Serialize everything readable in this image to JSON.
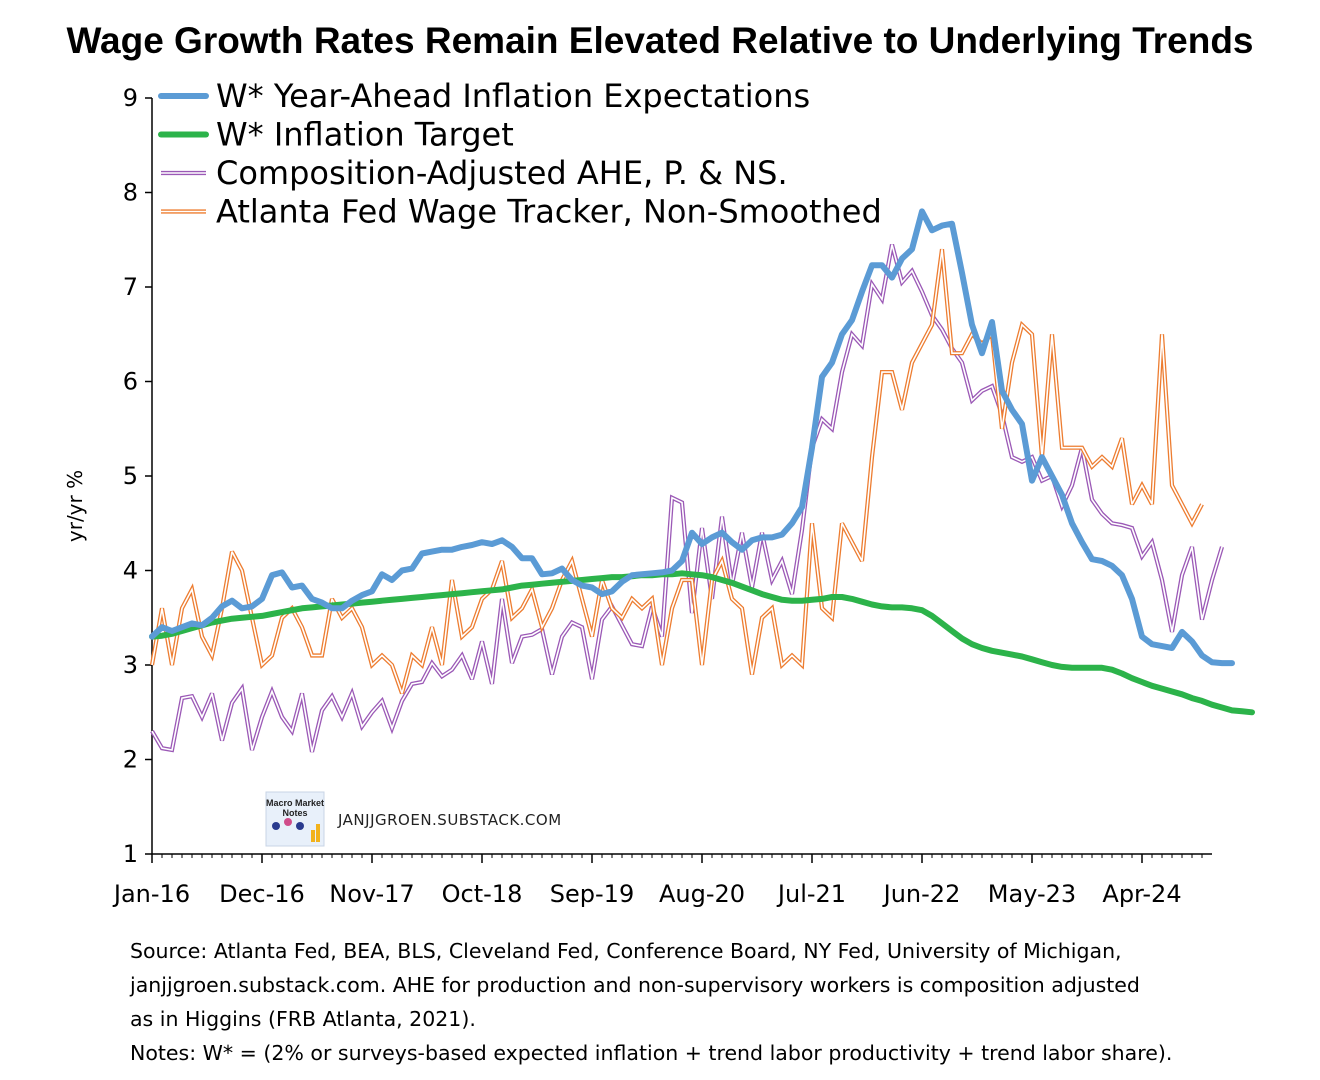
{
  "chart_data": {
    "type": "line",
    "title": "Wage Growth Rates Remain Elevated Relative to Underlying Trends",
    "ylabel": "yr/yr %",
    "xlabel": "",
    "ylim": [
      1,
      9
    ],
    "yticks": [
      1,
      2,
      3,
      4,
      5,
      6,
      7,
      8,
      9
    ],
    "x_tick_labels": [
      "Jan-16",
      "Dec-16",
      "Nov-17",
      "Oct-18",
      "Sep-19",
      "Aug-20",
      "Jul-21",
      "Jun-22",
      "May-23",
      "Apr-24"
    ],
    "x_tick_months": [
      0,
      11,
      22,
      33,
      44,
      55,
      66,
      77,
      88,
      99
    ],
    "x_months_total": 106,
    "grid": false,
    "legend_position": "top-left",
    "series": [
      {
        "name": "W* Year-Ahead Inflation Expectations",
        "color": "#5B9BD5",
        "style": "thick",
        "values": [
          3.3,
          3.4,
          3.36,
          3.4,
          3.44,
          3.42,
          3.5,
          3.62,
          3.68,
          3.6,
          3.62,
          3.7,
          3.95,
          3.98,
          3.82,
          3.84,
          3.7,
          3.66,
          3.6,
          3.6,
          3.68,
          3.74,
          3.78,
          3.96,
          3.9,
          4.0,
          4.02,
          4.18,
          4.2,
          4.22,
          4.22,
          4.25,
          4.27,
          4.3,
          4.28,
          4.32,
          4.25,
          4.13,
          4.13,
          3.96,
          3.97,
          4.02,
          3.9,
          3.84,
          3.82,
          3.75,
          3.78,
          3.88,
          3.95,
          3.96,
          3.97,
          3.98,
          4.0,
          4.1,
          4.4,
          4.28,
          4.35,
          4.4,
          4.3,
          4.22,
          4.32,
          4.35,
          4.35,
          4.38,
          4.5,
          4.67,
          5.3,
          6.05,
          6.2,
          6.5,
          6.65,
          6.95,
          7.23,
          7.23,
          7.1,
          7.3,
          7.4,
          7.8,
          7.6,
          7.65,
          7.67,
          7.15,
          6.6,
          6.3,
          6.63,
          5.9,
          5.7,
          5.55,
          4.95,
          5.2,
          5.0,
          4.8,
          4.5,
          4.3,
          4.12,
          4.1,
          4.05,
          3.95,
          3.7,
          3.3,
          3.22,
          3.2,
          3.18,
          3.35,
          3.25,
          3.1,
          3.03,
          3.02,
          3.02
        ]
      },
      {
        "name": "W* Inflation Target",
        "color": "#2CB34A",
        "style": "thick",
        "values": [
          3.3,
          3.31,
          3.33,
          3.36,
          3.39,
          3.42,
          3.45,
          3.47,
          3.49,
          3.5,
          3.51,
          3.52,
          3.54,
          3.56,
          3.58,
          3.6,
          3.61,
          3.62,
          3.63,
          3.64,
          3.65,
          3.66,
          3.67,
          3.68,
          3.69,
          3.7,
          3.71,
          3.72,
          3.73,
          3.74,
          3.75,
          3.76,
          3.77,
          3.78,
          3.79,
          3.8,
          3.82,
          3.84,
          3.85,
          3.86,
          3.87,
          3.88,
          3.89,
          3.9,
          3.91,
          3.92,
          3.93,
          3.93,
          3.94,
          3.95,
          3.95,
          3.96,
          3.96,
          3.97,
          3.96,
          3.95,
          3.93,
          3.9,
          3.87,
          3.83,
          3.79,
          3.75,
          3.72,
          3.69,
          3.68,
          3.68,
          3.69,
          3.7,
          3.72,
          3.72,
          3.7,
          3.67,
          3.64,
          3.62,
          3.61,
          3.61,
          3.6,
          3.58,
          3.52,
          3.44,
          3.36,
          3.28,
          3.22,
          3.18,
          3.15,
          3.13,
          3.11,
          3.09,
          3.06,
          3.03,
          3.0,
          2.98,
          2.97,
          2.97,
          2.97,
          2.97,
          2.95,
          2.91,
          2.86,
          2.82,
          2.78,
          2.75,
          2.72,
          2.69,
          2.65,
          2.62,
          2.58,
          2.55,
          2.52,
          2.51,
          2.5
        ]
      },
      {
        "name": "Composition-Adjusted AHE, P. & NS.",
        "color": "#9B59B6",
        "style": "double",
        "values": [
          2.3,
          2.12,
          2.1,
          2.65,
          2.67,
          2.45,
          2.7,
          2.2,
          2.6,
          2.75,
          2.1,
          2.45,
          2.72,
          2.45,
          2.3,
          2.7,
          2.08,
          2.52,
          2.67,
          2.45,
          2.7,
          2.35,
          2.5,
          2.62,
          2.33,
          2.62,
          2.8,
          2.82,
          3.02,
          2.88,
          2.95,
          3.1,
          2.85,
          3.25,
          2.8,
          3.7,
          3.02,
          3.3,
          3.32,
          3.38,
          2.9,
          3.3,
          3.45,
          3.4,
          2.85,
          3.48,
          3.62,
          3.42,
          3.22,
          3.2,
          3.62,
          3.3,
          4.77,
          4.72,
          3.55,
          4.45,
          3.7,
          4.57,
          3.85,
          4.4,
          3.82,
          4.4,
          3.9,
          4.1,
          3.75,
          4.43,
          5.3,
          5.6,
          5.5,
          6.1,
          6.5,
          6.38,
          7.03,
          6.87,
          7.45,
          7.05,
          7.17,
          6.95,
          6.7,
          6.55,
          6.35,
          6.2,
          5.8,
          5.9,
          5.95,
          5.65,
          5.2,
          5.15,
          5.2,
          4.95,
          5.0,
          4.68,
          4.9,
          5.3,
          4.75,
          4.6,
          4.5,
          4.48,
          4.45,
          4.15,
          4.3,
          3.9,
          3.35,
          3.95,
          4.25,
          3.48,
          3.9,
          4.25
        ]
      },
      {
        "name": "Atlanta Fed Wage Tracker, Non-Smoothed",
        "color": "#ED7D31",
        "style": "double",
        "values": [
          3.0,
          3.6,
          3.0,
          3.6,
          3.8,
          3.3,
          3.1,
          3.6,
          4.2,
          4.0,
          3.5,
          3.0,
          3.1,
          3.5,
          3.6,
          3.4,
          3.1,
          3.1,
          3.7,
          3.5,
          3.6,
          3.4,
          3.0,
          3.1,
          3.0,
          2.7,
          3.1,
          3.0,
          3.4,
          3.0,
          3.9,
          3.3,
          3.4,
          3.7,
          3.8,
          4.1,
          3.5,
          3.6,
          3.8,
          3.4,
          3.6,
          3.9,
          4.1,
          3.7,
          3.3,
          3.9,
          3.6,
          3.5,
          3.7,
          3.6,
          3.7,
          3.0,
          3.6,
          3.9,
          3.9,
          3.0,
          3.9,
          4.1,
          3.7,
          3.6,
          2.9,
          3.5,
          3.6,
          3.0,
          3.1,
          3.0,
          4.5,
          3.6,
          3.5,
          4.5,
          4.3,
          4.1,
          5.2,
          6.1,
          6.1,
          5.7,
          6.2,
          6.4,
          6.6,
          7.4,
          6.3,
          6.3,
          6.5,
          6.4,
          6.5,
          5.5,
          6.2,
          6.6,
          6.5,
          5.2,
          6.5,
          5.3,
          5.3,
          5.3,
          5.1,
          5.2,
          5.1,
          5.4,
          4.7,
          4.9,
          4.7,
          6.5,
          4.9,
          4.7,
          4.5,
          4.7
        ]
      }
    ]
  },
  "watermark": {
    "logo_text_1": "Macro Market",
    "logo_text_2": "Notes",
    "site": "JANJJGROEN.SUBSTACK.COM"
  },
  "footer": {
    "line1": "Source: Atlanta Fed, BEA, BLS, Cleveland Fed, Conference Board, NY Fed, University of Michigan,",
    "line2": "janjjgroen.substack.com. AHE for production and non-supervisory workers is composition adjusted",
    "line3": "as in Higgins (FRB Atlanta, 2021).",
    "line4": "Notes: W* = (2% or surveys-based expected inflation + trend labor productivity + trend labor share)."
  }
}
